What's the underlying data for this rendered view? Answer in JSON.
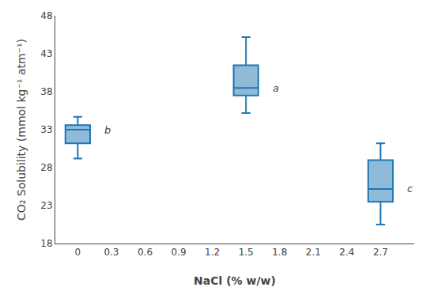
{
  "chart_data": {
    "type": "box",
    "xlabel": "NaCl (% w/w)",
    "ylabel": "CO₂ Solubility (mmol kg⁻¹ atm⁻¹)",
    "boxes": [
      {
        "x": 0,
        "whisker_low": 29.2,
        "q1": 31.2,
        "median": 33.0,
        "q3": 33.6,
        "whisker_high": 34.7,
        "label": "b"
      },
      {
        "x": 1.5,
        "whisker_low": 35.2,
        "q1": 37.5,
        "median": 38.5,
        "q3": 41.5,
        "whisker_high": 45.2,
        "label": "a"
      },
      {
        "x": 2.7,
        "whisker_low": 20.5,
        "q1": 23.5,
        "median": 25.2,
        "q3": 29.0,
        "whisker_high": 31.2,
        "label": "c"
      }
    ],
    "xlim": [
      -0.2,
      3.0
    ],
    "xticks": [
      0,
      0.3,
      0.6,
      0.9,
      1.2,
      1.5,
      1.8,
      2.1,
      2.4,
      2.7
    ],
    "ylim": [
      18,
      48
    ],
    "yticks": [
      18,
      23,
      28,
      33,
      38,
      43,
      48
    ],
    "grid": false
  }
}
